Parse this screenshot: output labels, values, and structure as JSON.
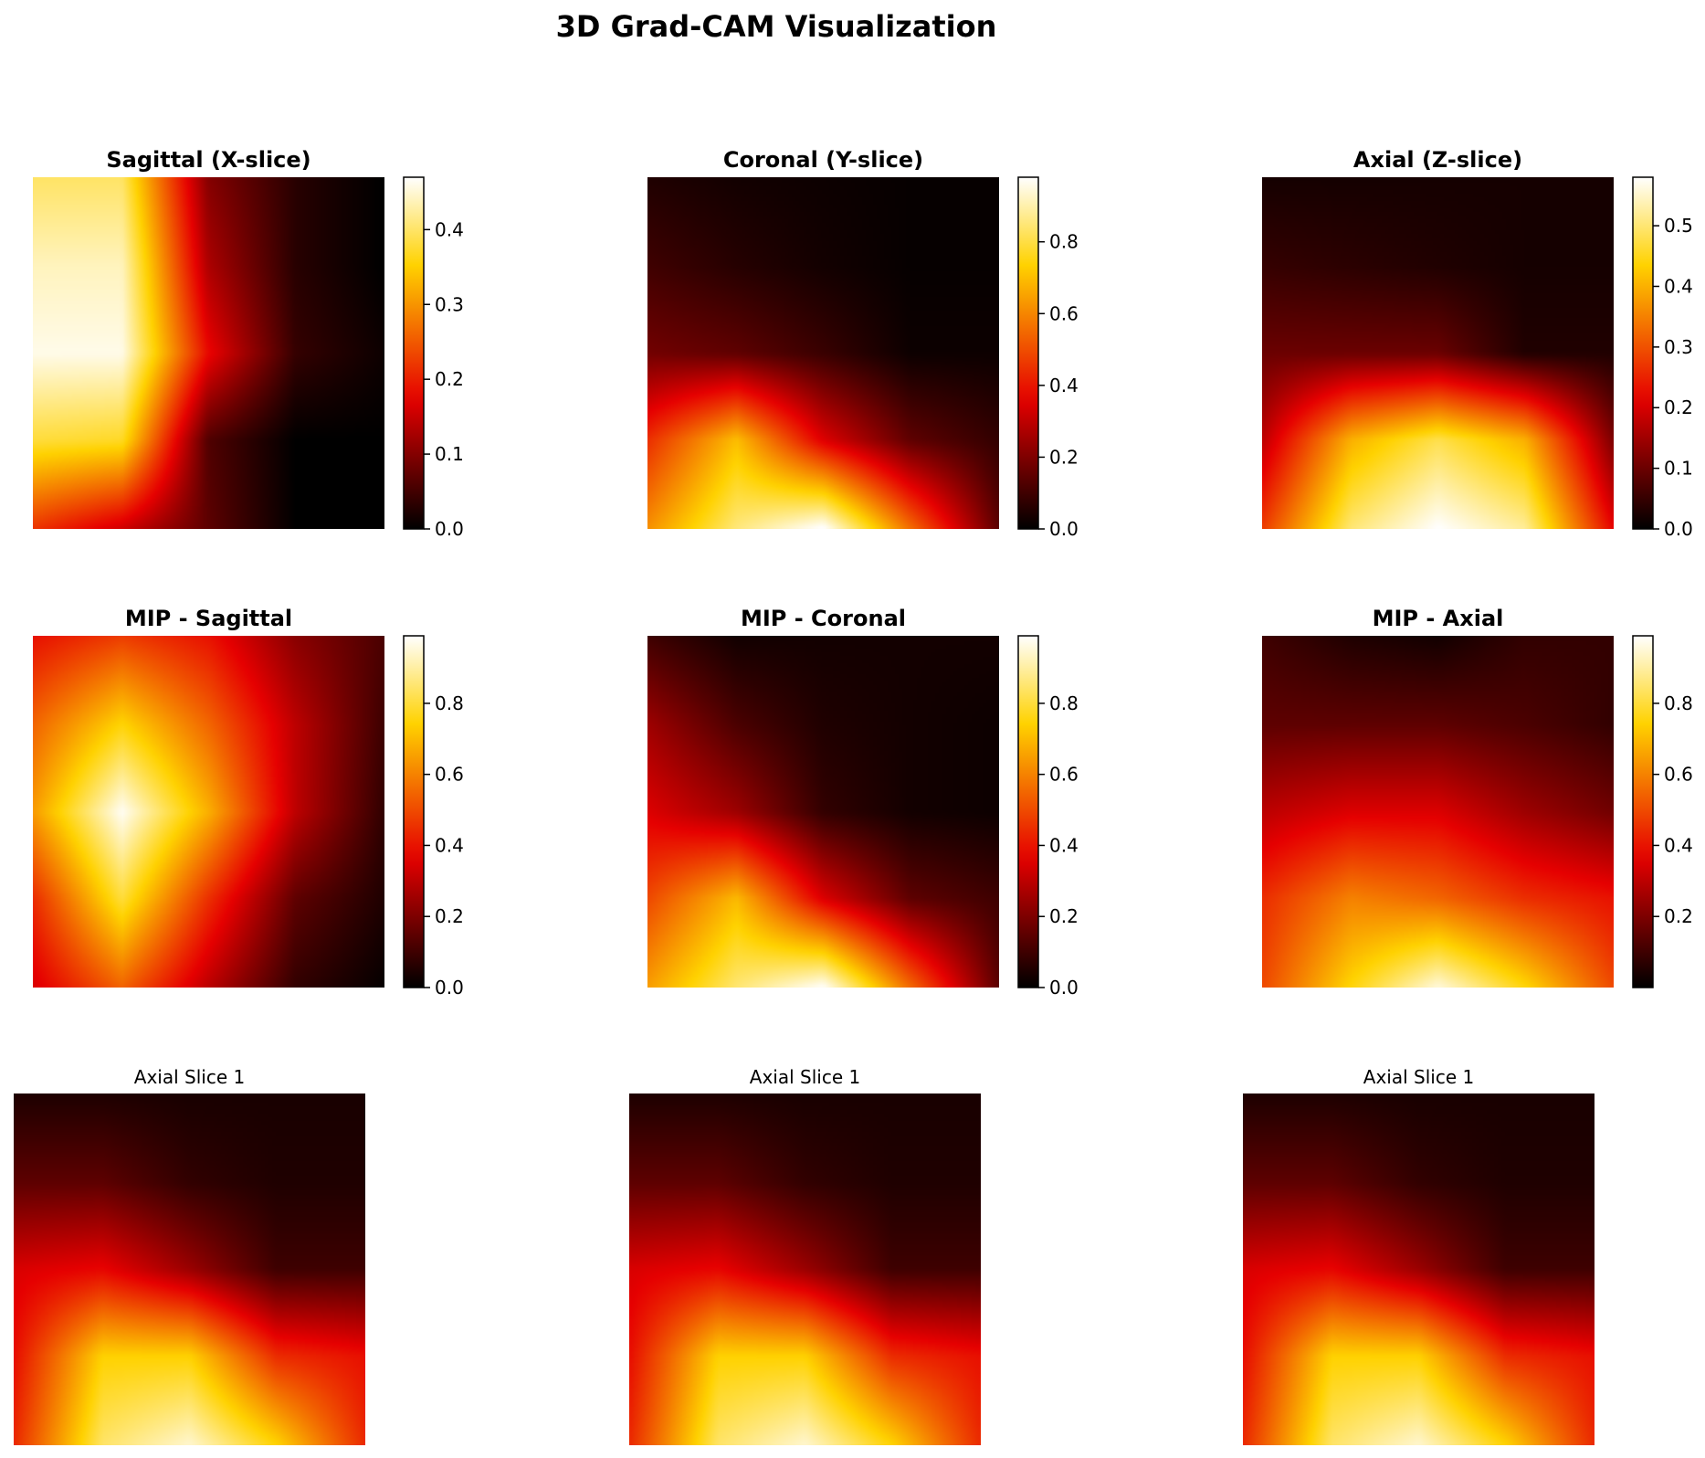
{
  "figure": {
    "title": "3D Grad-CAM Visualization"
  },
  "colormap": {
    "name": "hot",
    "stops": [
      "#000000",
      "#e60000",
      "#ffd200",
      "#ffffff"
    ]
  },
  "chart_data": [
    {
      "type": "heatmap",
      "title": "Sagittal (X-slice)",
      "title_bold": true,
      "grid": [
        [
          0.4,
          0.4,
          0.1,
          0.03,
          0.0
        ],
        [
          0.44,
          0.44,
          0.13,
          0.03,
          0.0
        ],
        [
          0.46,
          0.46,
          0.18,
          0.04,
          0.01
        ],
        [
          0.38,
          0.37,
          0.06,
          0.0,
          0.0
        ],
        [
          0.22,
          0.16,
          0.07,
          0.0,
          0.0
        ]
      ],
      "colorbar": {
        "vmin": 0.0,
        "vmax": 0.47,
        "ticks": [
          "0.0",
          "0.1",
          "0.2",
          "0.3",
          "0.4"
        ],
        "tick_values": [
          0.0,
          0.1,
          0.2,
          0.3,
          0.4
        ]
      }
    },
    {
      "type": "heatmap",
      "title": "Coronal (Y-slice)",
      "title_bold": true,
      "grid": [
        [
          0.05,
          0.03,
          0.02,
          0.01,
          0.01
        ],
        [
          0.1,
          0.06,
          0.03,
          0.01,
          0.01
        ],
        [
          0.18,
          0.15,
          0.09,
          0.02,
          0.02
        ],
        [
          0.45,
          0.7,
          0.35,
          0.15,
          0.08
        ],
        [
          0.62,
          0.85,
          0.98,
          0.55,
          0.15
        ]
      ],
      "colorbar": {
        "vmin": 0.0,
        "vmax": 0.98,
        "ticks": [
          "0.0",
          "0.2",
          "0.4",
          "0.6",
          "0.8"
        ],
        "tick_values": [
          0.0,
          0.2,
          0.4,
          0.6,
          0.8
        ]
      }
    },
    {
      "type": "heatmap",
      "title": "Axial (Z-slice)",
      "title_bold": true,
      "grid": [
        [
          0.02,
          0.02,
          0.02,
          0.02,
          0.02
        ],
        [
          0.05,
          0.04,
          0.03,
          0.02,
          0.02
        ],
        [
          0.1,
          0.1,
          0.1,
          0.03,
          0.03
        ],
        [
          0.18,
          0.4,
          0.48,
          0.4,
          0.12
        ],
        [
          0.28,
          0.5,
          0.58,
          0.52,
          0.22
        ]
      ],
      "colorbar": {
        "vmin": 0.0,
        "vmax": 0.58,
        "ticks": [
          "0.0",
          "0.1",
          "0.2",
          "0.3",
          "0.4",
          "0.5"
        ],
        "tick_values": [
          0.0,
          0.1,
          0.2,
          0.3,
          0.4,
          0.5
        ]
      }
    },
    {
      "type": "heatmap",
      "title": "MIP - Sagittal",
      "title_bold": true,
      "grid": [
        [
          0.4,
          0.48,
          0.4,
          0.22,
          0.12
        ],
        [
          0.55,
          0.75,
          0.55,
          0.3,
          0.1
        ],
        [
          0.65,
          0.98,
          0.68,
          0.3,
          0.08
        ],
        [
          0.45,
          0.8,
          0.45,
          0.15,
          0.05
        ],
        [
          0.35,
          0.55,
          0.3,
          0.08,
          0.01
        ]
      ],
      "colorbar": {
        "vmin": 0.0,
        "vmax": 0.99,
        "ticks": [
          "0.0",
          "0.2",
          "0.4",
          "0.6",
          "0.8"
        ],
        "tick_values": [
          0.0,
          0.2,
          0.4,
          0.6,
          0.8
        ]
      }
    },
    {
      "type": "heatmap",
      "title": "MIP - Coronal",
      "title_bold": true,
      "grid": [
        [
          0.1,
          0.03,
          0.03,
          0.03,
          0.03
        ],
        [
          0.25,
          0.12,
          0.05,
          0.03,
          0.02
        ],
        [
          0.35,
          0.25,
          0.08,
          0.03,
          0.02
        ],
        [
          0.5,
          0.7,
          0.35,
          0.15,
          0.1
        ],
        [
          0.65,
          0.85,
          0.98,
          0.55,
          0.15
        ]
      ],
      "colorbar": {
        "vmin": 0.0,
        "vmax": 0.99,
        "ticks": [
          "0.0",
          "0.2",
          "0.4",
          "0.6",
          "0.8"
        ],
        "tick_values": [
          0.0,
          0.2,
          0.4,
          0.6,
          0.8
        ]
      }
    },
    {
      "type": "heatmap",
      "title": "MIP - Axial",
      "title_bold": true,
      "grid": [
        [
          0.1,
          0.05,
          0.03,
          0.08,
          0.08
        ],
        [
          0.15,
          0.15,
          0.15,
          0.12,
          0.08
        ],
        [
          0.3,
          0.35,
          0.35,
          0.25,
          0.18
        ],
        [
          0.45,
          0.6,
          0.55,
          0.45,
          0.4
        ],
        [
          0.5,
          0.75,
          0.95,
          0.75,
          0.5
        ]
      ],
      "colorbar": {
        "vmin": 0.0,
        "vmax": 0.99,
        "ticks": [
          "0.2",
          "0.4",
          "0.6",
          "0.8"
        ],
        "tick_values": [
          0.2,
          0.4,
          0.6,
          0.8
        ]
      }
    },
    {
      "type": "heatmap",
      "title": "Axial Slice 1",
      "title_bold": false,
      "grid": [
        [
          0.05,
          0.05,
          0.04,
          0.04,
          0.04
        ],
        [
          0.15,
          0.15,
          0.08,
          0.05,
          0.05
        ],
        [
          0.35,
          0.38,
          0.25,
          0.1,
          0.1
        ],
        [
          0.4,
          0.75,
          0.75,
          0.45,
          0.4
        ],
        [
          0.45,
          0.85,
          0.95,
          0.75,
          0.45
        ]
      ]
    },
    {
      "type": "heatmap",
      "title": "Axial Slice 1",
      "title_bold": false,
      "grid": [
        [
          0.05,
          0.05,
          0.04,
          0.04,
          0.04
        ],
        [
          0.15,
          0.15,
          0.08,
          0.05,
          0.05
        ],
        [
          0.35,
          0.38,
          0.25,
          0.1,
          0.1
        ],
        [
          0.4,
          0.75,
          0.75,
          0.45,
          0.4
        ],
        [
          0.45,
          0.85,
          0.95,
          0.75,
          0.45
        ]
      ]
    },
    {
      "type": "heatmap",
      "title": "Axial Slice 1",
      "title_bold": false,
      "grid": [
        [
          0.05,
          0.05,
          0.04,
          0.04,
          0.04
        ],
        [
          0.15,
          0.15,
          0.08,
          0.05,
          0.05
        ],
        [
          0.35,
          0.38,
          0.25,
          0.1,
          0.1
        ],
        [
          0.4,
          0.75,
          0.75,
          0.45,
          0.4
        ],
        [
          0.45,
          0.85,
          0.95,
          0.75,
          0.45
        ]
      ]
    }
  ]
}
